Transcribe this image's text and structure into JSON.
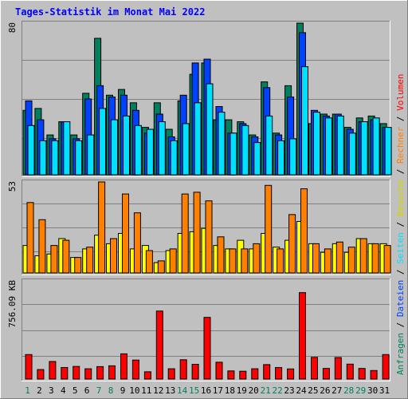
{
  "title": "Tages-Statistik im Monat Mai 2022",
  "colors": {
    "title": "#0000ff",
    "hits": "#00805f",
    "files": "#0040ff",
    "pages": "#00e0ff",
    "visits": "#ffff00",
    "sites": "#ff8000",
    "kbytes": "#ff0000",
    "weekday_label": "#000000",
    "weekend_label": "#00805f",
    "panel_bg": "#c0c0c0",
    "grid": "#808080"
  },
  "legend_right": [
    {
      "text": "Anfragen",
      "color": "#00805f"
    },
    {
      "text": " / ",
      "color": "#000000"
    },
    {
      "text": "Dateien",
      "color": "#0040ff"
    },
    {
      "text": " / ",
      "color": "#000000"
    },
    {
      "text": "Seiten",
      "color": "#00e0ff"
    },
    {
      "text": " / ",
      "color": "#000000"
    },
    {
      "text": "Besuche",
      "color": "#d4d400"
    },
    {
      "text": " / ",
      "color": "#000000"
    },
    {
      "text": "Rechner",
      "color": "#ff8000"
    },
    {
      "text": " / ",
      "color": "#000000"
    },
    {
      "text": "Volumen",
      "color": "#ff0000"
    }
  ],
  "chart_data": [
    {
      "type": "bar",
      "title": "Tages-Statistik im Monat Mai 2022",
      "ymax_label": "80",
      "ylim": [
        0,
        80
      ],
      "categories": [
        "1",
        "2",
        "3",
        "4",
        "5",
        "6",
        "7",
        "8",
        "9",
        "10",
        "11",
        "12",
        "13",
        "14",
        "15",
        "16",
        "17",
        "18",
        "19",
        "20",
        "21",
        "22",
        "23",
        "24",
        "25",
        "26",
        "27",
        "28",
        "29",
        "30",
        "31"
      ],
      "weekend_days": [
        1,
        7,
        8,
        14,
        15,
        21,
        22,
        28,
        29
      ],
      "series": [
        {
          "name": "Anfragen",
          "values": [
            34,
            35,
            21,
            28,
            21,
            43,
            72,
            42,
            45,
            38,
            25,
            38,
            24,
            39,
            53,
            59,
            29,
            29,
            28,
            21,
            49,
            22,
            47,
            80,
            27,
            32,
            32,
            25,
            30,
            31,
            27
          ]
        },
        {
          "name": "Dateien",
          "values": [
            39,
            29,
            19,
            28,
            19,
            40,
            47,
            41,
            42,
            34,
            22,
            32,
            20,
            42,
            59,
            61,
            36,
            22,
            27,
            20,
            46,
            21,
            41,
            75,
            34,
            31,
            32,
            24,
            28,
            29,
            25
          ]
        },
        {
          "name": "Seiten",
          "values": [
            26,
            18,
            18,
            28,
            18,
            21,
            35,
            29,
            31,
            26,
            24,
            28,
            18,
            27,
            38,
            48,
            33,
            22,
            26,
            17,
            31,
            18,
            19,
            57,
            33,
            30,
            31,
            22,
            28,
            30,
            25
          ]
        }
      ]
    },
    {
      "type": "bar",
      "ymax_label": "53",
      "ylim": [
        0,
        53
      ],
      "categories": [
        "1",
        "2",
        "3",
        "4",
        "5",
        "6",
        "7",
        "8",
        "9",
        "10",
        "11",
        "12",
        "13",
        "14",
        "15",
        "16",
        "17",
        "18",
        "19",
        "20",
        "21",
        "22",
        "23",
        "24",
        "25",
        "26",
        "27",
        "28",
        "29",
        "30",
        "31"
      ],
      "series": [
        {
          "name": "Besuche",
          "values": [
            16,
            10,
            11,
            20,
            9,
            14,
            22,
            17,
            23,
            14,
            16,
            6,
            13,
            23,
            24,
            26,
            16,
            14,
            19,
            14,
            23,
            15,
            19,
            30,
            17,
            12,
            17,
            12,
            20,
            17,
            17
          ]
        },
        {
          "name": "Rechner",
          "values": [
            41,
            31,
            16,
            19,
            9,
            15,
            53,
            20,
            46,
            35,
            13,
            7,
            14,
            46,
            47,
            42,
            21,
            14,
            14,
            17,
            51,
            14,
            34,
            49,
            17,
            14,
            18,
            15,
            20,
            17,
            16
          ]
        }
      ]
    },
    {
      "type": "bar",
      "ymax_label": "756.09 KB",
      "ylim": [
        0,
        756.09
      ],
      "unit": "KB",
      "categories": [
        "1",
        "2",
        "3",
        "4",
        "5",
        "6",
        "7",
        "8",
        "9",
        "10",
        "11",
        "12",
        "13",
        "14",
        "15",
        "16",
        "17",
        "18",
        "19",
        "20",
        "21",
        "22",
        "23",
        "24",
        "25",
        "26",
        "27",
        "28",
        "29",
        "30",
        "31"
      ],
      "series": [
        {
          "name": "Volumen",
          "values": [
            189,
            73,
            135,
            89,
            97,
            79,
            96,
            102,
            194,
            146,
            56,
            524,
            79,
            149,
            114,
            475,
            130,
            63,
            60,
            79,
            111,
            89,
            78,
            666,
            167,
            82,
            166,
            115,
            82,
            66,
            189
          ]
        }
      ]
    }
  ]
}
